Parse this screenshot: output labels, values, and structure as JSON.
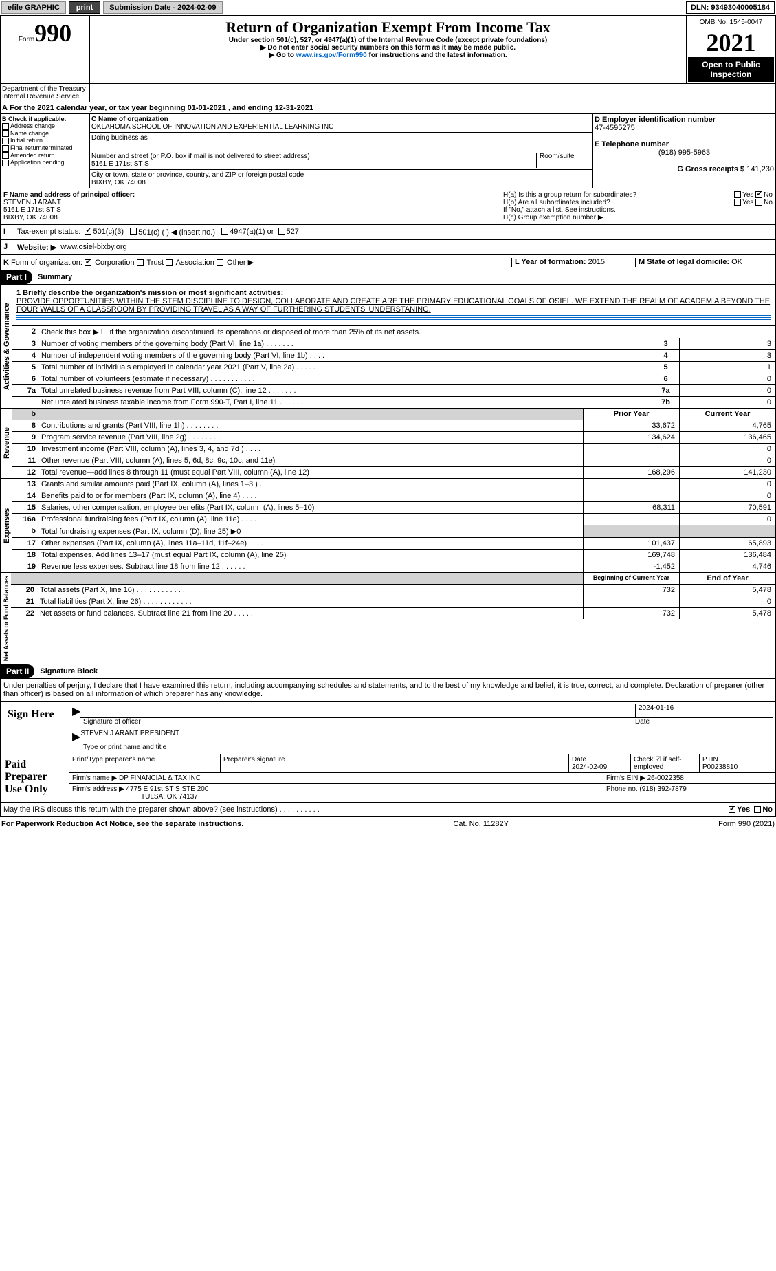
{
  "topbar": {
    "efile": "efile GRAPHIC",
    "print": "print",
    "submission_label": "Submission Date - 2024-02-09",
    "dln": "DLN: 93493040005184"
  },
  "header": {
    "form_label": "Form",
    "form_num": "990",
    "title": "Return of Organization Exempt From Income Tax",
    "subtitle1": "Under section 501(c), 527, or 4947(a)(1) of the Internal Revenue Code (except private foundations)",
    "subtitle2": "▶ Do not enter social security numbers on this form as it may be made public.",
    "subtitle3_pre": "▶ Go to ",
    "subtitle3_link": "www.irs.gov/Form990",
    "subtitle3_post": " for instructions and the latest information.",
    "omb": "OMB No. 1545-0047",
    "year": "2021",
    "ribbon": "Open to Public Inspection",
    "dept": "Department of the Treasury",
    "irs": "Internal Revenue Service"
  },
  "A": {
    "text": "For the 2021 calendar year, or tax year beginning 01-01-2021    , and ending 12-31-2021"
  },
  "B": {
    "label": "B Check if applicable:",
    "items": [
      "Address change",
      "Name change",
      "Initial return",
      "Final return/terminated",
      "Amended return",
      "Application pending"
    ]
  },
  "C": {
    "name_label": "C Name of organization",
    "name": "OKLAHOMA SCHOOL OF INNOVATION AND EXPERIENTIAL LEARNING INC",
    "dba_label": "Doing business as",
    "street_label": "Number and street (or P.O. box if mail is not delivered to street address)",
    "room_label": "Room/suite",
    "street": "5161 E 171st ST S",
    "city_label": "City or town, state or province, country, and ZIP or foreign postal code",
    "city": "BIXBY, OK  74008"
  },
  "D": {
    "ein_label": "D Employer identification number",
    "ein": "47-4595275",
    "phone_label": "E Telephone number",
    "phone": "(918) 995-5963",
    "receipts_label": "G Gross receipts $",
    "receipts": "141,230"
  },
  "F": {
    "label": "F  Name and address of principal officer:",
    "name": "STEVEN J ARANT",
    "street": "5161 E 171st ST S",
    "city": "BIXBY, OK  74008"
  },
  "H": {
    "a": "H(a)  Is this a group return for subordinates?",
    "b": "H(b)  Are all subordinates included?",
    "note": "If \"No,\" attach a list. See instructions.",
    "c": "H(c)  Group exemption number ▶"
  },
  "I": {
    "label": "Tax-exempt status:",
    "opt1": "501(c)(3)",
    "opt2": "501(c) (   ) ◀ (insert no.)",
    "opt3": "4947(a)(1) or",
    "opt4": "527"
  },
  "J": {
    "label": "Website: ▶",
    "val": "www.osiel-bixby.org"
  },
  "K": {
    "label": "Form of organization:",
    "corp": "Corporation",
    "trust": "Trust",
    "assoc": "Association",
    "other": "Other ▶"
  },
  "L": {
    "label": "L Year of formation:",
    "val": "2015"
  },
  "M": {
    "label": "M State of legal domicile:",
    "val": "OK"
  },
  "partI": {
    "label": "Part I",
    "title": "Summary"
  },
  "mission": {
    "label": "1  Briefly describe the organization's mission or most significant activities:",
    "text": "PROVIDE OPPORTUNITIES WITHIN THE STEM DISCIPLINE TO DESIGN, COLLABORATE AND CREATE ARE THE PRIMARY EDUCATIONAL GOALS OF OSIEL. WE EXTEND THE REALM OF ACADEMIA BEYOND THE FOUR WALLS OF A CLASSROOM BY PROVIDING TRAVEL AS A WAY OF FURTHERING STUDENTS' UNDERSTANING."
  },
  "gov": {
    "side": "Activities & Governance",
    "l2": "Check this box ▶ ☐  if the organization discontinued its operations or disposed of more than 25% of its net assets.",
    "lines": [
      {
        "n": "3",
        "t": "Number of voting members of the governing body (Part VI, line 1a)   .    .    .    .    .    .    .",
        "b": "3",
        "v": "3"
      },
      {
        "n": "4",
        "t": "Number of independent voting members of the governing body (Part VI, line 1b)   .    .    .    .",
        "b": "4",
        "v": "3"
      },
      {
        "n": "5",
        "t": "Total number of individuals employed in calendar year 2021 (Part V, line 2a)   .    .    .    .    .",
        "b": "5",
        "v": "1"
      },
      {
        "n": "6",
        "t": "Total number of volunteers (estimate if necessary)    .    .    .    .    .    .    .    .    .    .    .",
        "b": "6",
        "v": "0"
      },
      {
        "n": "7a",
        "t": "Total unrelated business revenue from Part VIII, column (C), line 12   .    .    .    .    .    .    .",
        "b": "7a",
        "v": "0"
      },
      {
        "n": "",
        "t": "Net unrelated business taxable income from Form 990-T, Part I, line 11   .    .    .    .    .    .",
        "b": "7b",
        "v": "0"
      }
    ]
  },
  "rev": {
    "side": "Revenue",
    "head_prior": "Prior Year",
    "head_curr": "Current Year",
    "lines": [
      {
        "n": "8",
        "t": "Contributions and grants (Part VIII, line 1h)   .    .    .    .    .    .    .    .",
        "p": "33,672",
        "c": "4,765"
      },
      {
        "n": "9",
        "t": "Program service revenue (Part VIII, line 2g)   .    .    .    .    .    .    .    .",
        "p": "134,624",
        "c": "136,465"
      },
      {
        "n": "10",
        "t": "Investment income (Part VIII, column (A), lines 3, 4, and 7d )   .    .    .    .",
        "p": "",
        "c": "0"
      },
      {
        "n": "11",
        "t": "Other revenue (Part VIII, column (A), lines 5, 6d, 8c, 9c, 10c, and 11e)",
        "p": "",
        "c": "0"
      },
      {
        "n": "12",
        "t": "Total revenue—add lines 8 through 11 (must equal Part VIII, column (A), line 12)",
        "p": "168,296",
        "c": "141,230"
      }
    ]
  },
  "exp": {
    "side": "Expenses",
    "lines": [
      {
        "n": "13",
        "t": "Grants and similar amounts paid (Part IX, column (A), lines 1–3 )   .    .    .",
        "p": "",
        "c": "0"
      },
      {
        "n": "14",
        "t": "Benefits paid to or for members (Part IX, column (A), line 4)   .    .    .    .",
        "p": "",
        "c": "0"
      },
      {
        "n": "15",
        "t": "Salaries, other compensation, employee benefits (Part IX, column (A), lines 5–10)",
        "p": "68,311",
        "c": "70,591"
      },
      {
        "n": "16a",
        "t": "Professional fundraising fees (Part IX, column (A), line 11e)   .    .    .    .",
        "p": "",
        "c": "0"
      },
      {
        "n": "b",
        "t": "Total fundraising expenses (Part IX, column (D), line 25) ▶0",
        "p": "shade",
        "c": "shade"
      },
      {
        "n": "17",
        "t": "Other expenses (Part IX, column (A), lines 11a–11d, 11f–24e)   .    .    .    .",
        "p": "101,437",
        "c": "65,893"
      },
      {
        "n": "18",
        "t": "Total expenses. Add lines 13–17 (must equal Part IX, column (A), line 25)",
        "p": "169,748",
        "c": "136,484"
      },
      {
        "n": "19",
        "t": "Revenue less expenses. Subtract line 18 from line 12   .    .    .    .    .    .",
        "p": "-1,452",
        "c": "4,746"
      }
    ]
  },
  "net": {
    "side": "Net Assets or Fund Balances",
    "head_begin": "Beginning of Current Year",
    "head_end": "End of Year",
    "lines": [
      {
        "n": "20",
        "t": "Total assets (Part X, line 16)   .    .    .    .    .    .    .    .    .    .    .    .",
        "p": "732",
        "c": "5,478"
      },
      {
        "n": "21",
        "t": "Total liabilities (Part X, line 26)   .    .    .    .    .    .    .    .    .    .    .    .",
        "p": "",
        "c": "0"
      },
      {
        "n": "22",
        "t": "Net assets or fund balances. Subtract line 21 from line 20   .    .    .    .    .",
        "p": "732",
        "c": "5,478"
      }
    ]
  },
  "partII": {
    "label": "Part II",
    "title": "Signature Block"
  },
  "perjury": "Under penalties of perjury, I declare that I have examined this return, including accompanying schedules and statements, and to the best of my knowledge and belief, it is true, correct, and complete. Declaration of preparer (other than officer) is based on all information of which preparer has any knowledge.",
  "sign": {
    "label": "Sign Here",
    "date": "2024-01-16",
    "sig_of": "Signature of officer",
    "date_lbl": "Date",
    "name": "STEVEN J ARANT  PRESIDENT",
    "name_lbl": "Type or print name and title"
  },
  "prep": {
    "label": "Paid Preparer Use Only",
    "h1": "Print/Type preparer's name",
    "h2": "Preparer's signature",
    "h3": "Date",
    "h4": "Check ☑ if self-employed",
    "h5": "PTIN",
    "date": "2024-02-09",
    "ptin": "P00238810",
    "firm_lbl": "Firm's name    ▶",
    "firm": "DP FINANCIAL & TAX INC",
    "ein_lbl": "Firm's EIN ▶",
    "ein": "26-0022358",
    "addr_lbl": "Firm's address ▶",
    "addr1": "4775 E 91st ST S STE 200",
    "addr2": "TULSA, OK  74137",
    "phone_lbl": "Phone no.",
    "phone": "(918) 392-7879"
  },
  "discuss": "May the IRS discuss this return with the preparer shown above? (see instructions)   .    .    .    .    .    .    .    .    .    .",
  "footer": {
    "left": "For Paperwork Reduction Act Notice, see the separate instructions.",
    "mid": "Cat. No. 11282Y",
    "right": "Form 990 (2021)"
  }
}
